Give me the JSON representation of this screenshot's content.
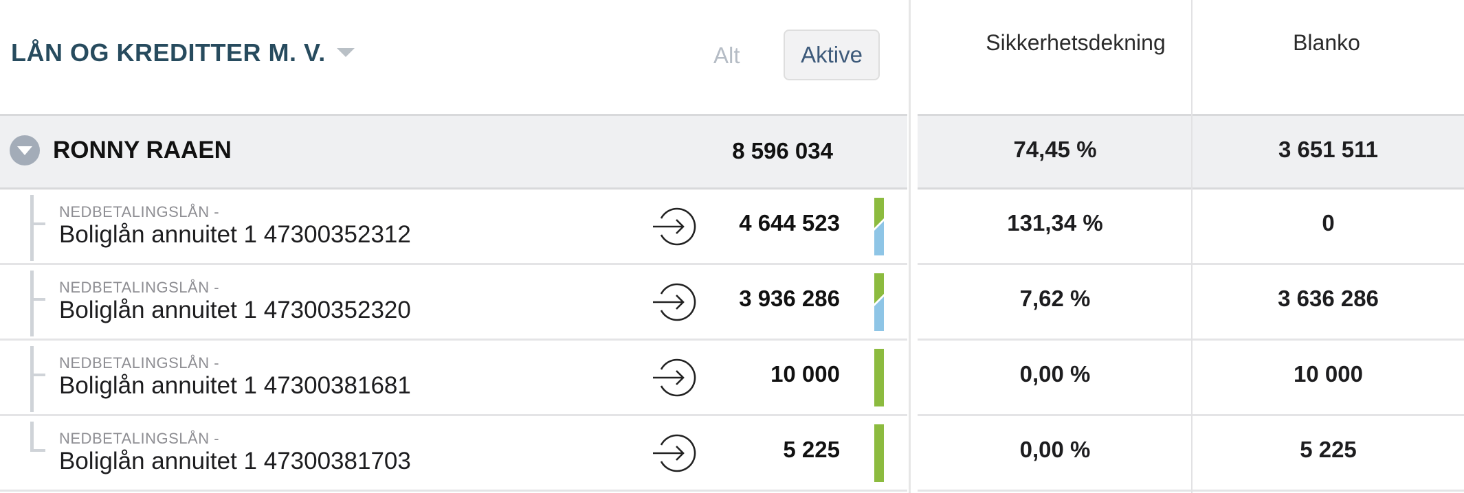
{
  "header": {
    "title": "LÅN OG KREDITTER M. V.",
    "filters": {
      "all_label": "Alt",
      "active_label": "Aktive"
    },
    "columns": {
      "security": "Sikkerhetsdekning",
      "blank": "Blanko"
    }
  },
  "group": {
    "name": "RONNY RAAEN",
    "total": "8 596 034",
    "security": "74,45 %",
    "blank": "3 651 511"
  },
  "loans": [
    {
      "type": "NEDBETALINGSLÅN -",
      "name": "Boliglån annuitet 1 47300352312",
      "amount": "4 644 523",
      "security": "131,34 %",
      "blank": "0",
      "indicator": "split"
    },
    {
      "type": "NEDBETALINGSLÅN -",
      "name": "Boliglån annuitet 1 47300352320",
      "amount": "3 936 286",
      "security": "7,62 %",
      "blank": "3 636 286",
      "indicator": "split"
    },
    {
      "type": "NEDBETALINGSLÅN -",
      "name": "Boliglån annuitet 1 47300381681",
      "amount": "10 000",
      "security": "0,00 %",
      "blank": "10 000",
      "indicator": "green"
    },
    {
      "type": "NEDBETALINGSLÅN -",
      "name": "Boliglån annuitet 1 47300381703",
      "amount": "5 225",
      "security": "0,00 %",
      "blank": "5 225",
      "indicator": "green"
    }
  ],
  "colors": {
    "title": "#274b5e",
    "indicator_green": "#8cbb3f",
    "indicator_blue": "#8ec5e6",
    "row_group_bg": "#eff0f2"
  },
  "icons": {
    "collapse": "chevron-down-circle-icon",
    "transfer": "sign-in-arrow-icon"
  }
}
